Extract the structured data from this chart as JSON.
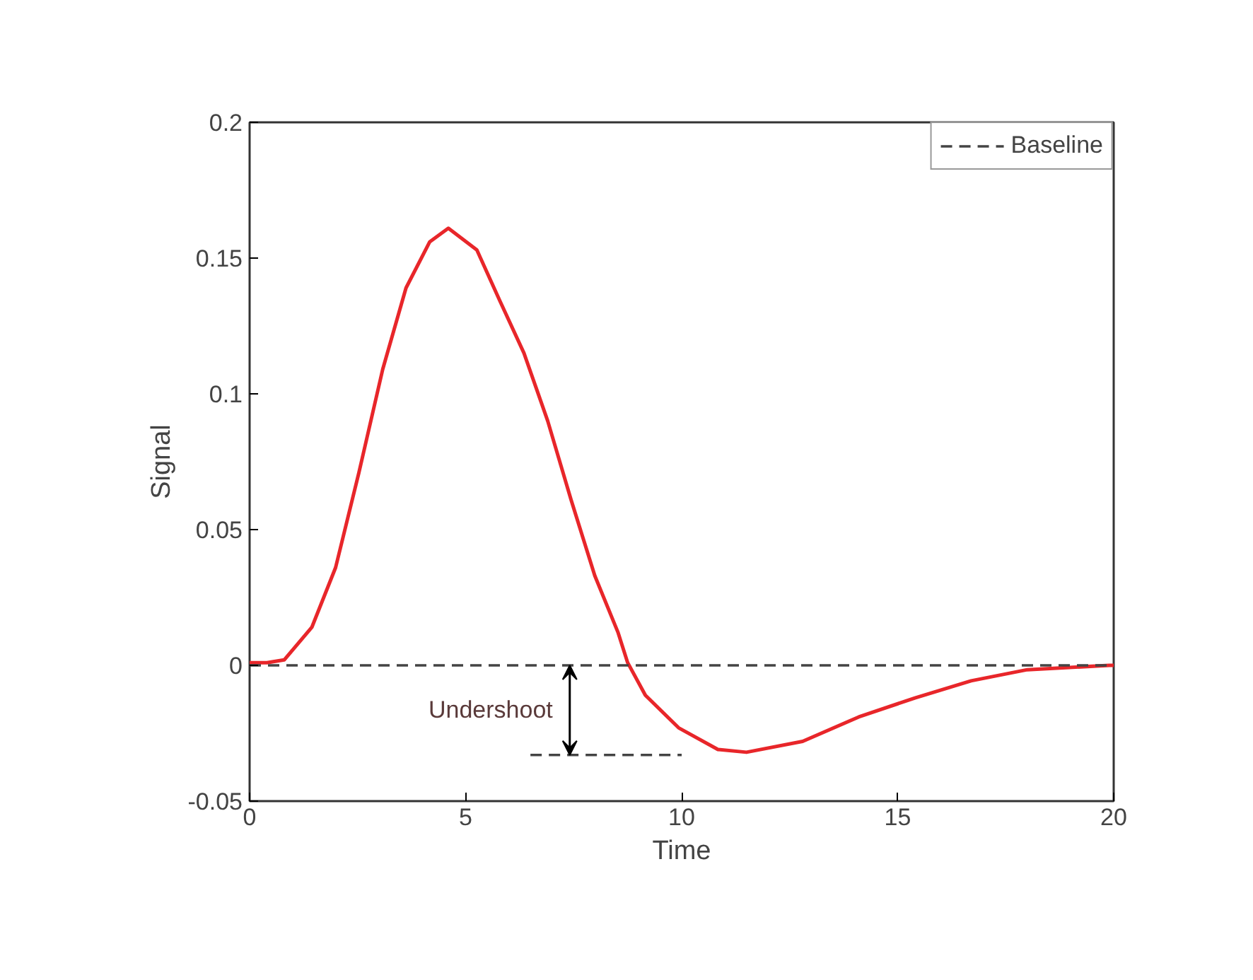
{
  "chart_data": {
    "type": "line",
    "xlabel": "Time",
    "ylabel": "Signal",
    "xlim": [
      0,
      20
    ],
    "ylim": [
      -0.05,
      0.2
    ],
    "xticks": [
      0,
      5,
      10,
      15,
      20
    ],
    "yticks": [
      -0.05,
      0,
      0.05,
      0.1,
      0.15,
      0.2
    ],
    "grid": false,
    "legend": "top right",
    "series": [
      {
        "color": "#e8262a",
        "line_style": "solid",
        "x": [
          0,
          0.4,
          0.8,
          1.44,
          1.99,
          2.53,
          3.08,
          3.62,
          4.17,
          4.6,
          5.26,
          5.8,
          6.35,
          6.9,
          7.44,
          7.99,
          8.53,
          8.75,
          9.16,
          9.93,
          10.84,
          11.5,
          12.8,
          14.1,
          15.4,
          16.7,
          18.0,
          19.9,
          20
        ],
        "values": [
          0.001,
          0.001,
          0.002,
          0.014,
          0.036,
          0.071,
          0.109,
          0.139,
          0.156,
          0.161,
          0.153,
          0.134,
          0.115,
          0.09,
          0.061,
          0.033,
          0.012,
          0.001,
          -0.011,
          -0.023,
          -0.031,
          -0.032,
          -0.028,
          -0.019,
          -0.012,
          -0.0057,
          -0.0016,
          0,
          0
        ]
      },
      {
        "name": "Baseline",
        "color": "#444444",
        "line_style": "dashed",
        "x": [
          0,
          20
        ],
        "values": [
          0,
          0
        ]
      },
      {
        "color": "#444444",
        "line_style": "dashed",
        "x": [
          6.5,
          10
        ],
        "values": [
          -0.033,
          -0.033
        ]
      }
    ],
    "annotations": [
      "Undershoot"
    ]
  }
}
